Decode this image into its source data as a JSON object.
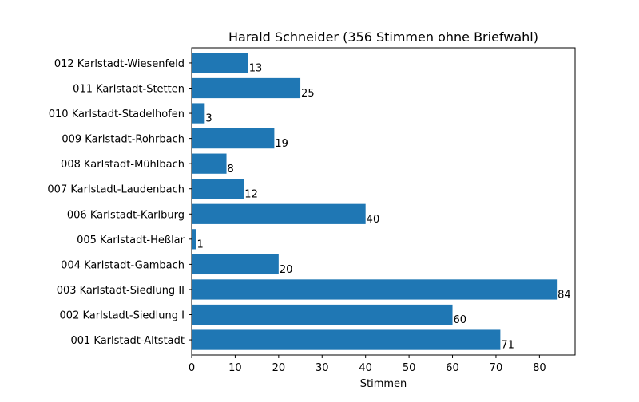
{
  "chart_data": {
    "type": "bar",
    "orientation": "horizontal",
    "title": "Harald Schneider (356 Stimmen ohne Briefwahl)",
    "xlabel": "Stimmen",
    "ylabel": "",
    "xlim": [
      0,
      88.2
    ],
    "xticks": [
      0,
      10,
      20,
      30,
      40,
      50,
      60,
      70,
      80
    ],
    "grid": false,
    "bar_color": "#1f77b4",
    "categories": [
      "001 Karlstadt-Altstadt",
      "002 Karlstadt-Siedlung I",
      "003 Karlstadt-Siedlung II",
      "004 Karlstadt-Gambach",
      "005 Karlstadt-Heßlar",
      "006 Karlstadt-Karlburg",
      "007 Karlstadt-Laudenbach",
      "008 Karlstadt-Mühlbach",
      "009 Karlstadt-Rohrbach",
      "010 Karlstadt-Stadelhofen",
      "011 Karlstadt-Stetten",
      "012 Karlstadt-Wiesenfeld"
    ],
    "values": [
      71,
      60,
      84,
      20,
      1,
      40,
      12,
      8,
      19,
      3,
      25,
      13
    ]
  }
}
